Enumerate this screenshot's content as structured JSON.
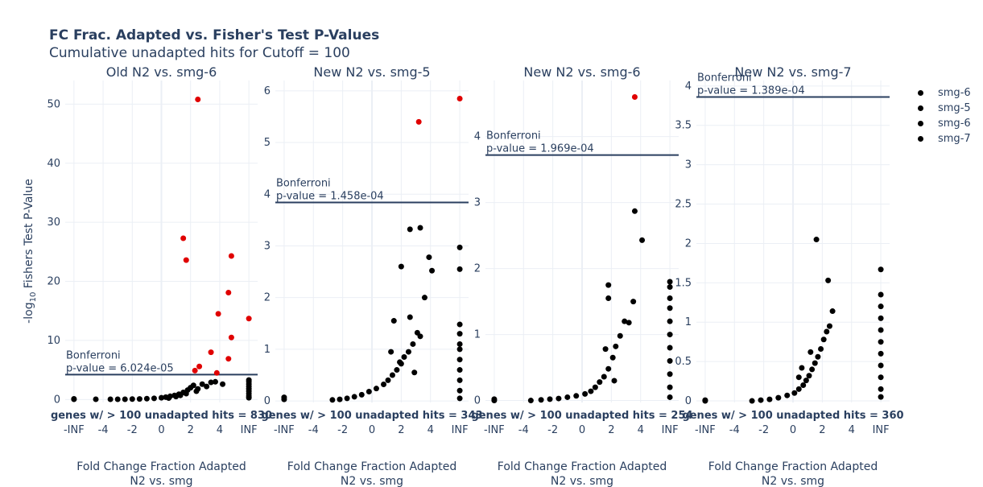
{
  "header": {
    "title": "FC Frac. Adapted vs. Fisher's Test P-Values",
    "subtitle": "Cumulative unadapted hits for Cutoff = 100"
  },
  "legend": {
    "items": [
      "smg-6",
      "smg-5",
      "smg-6",
      "smg-7"
    ]
  },
  "colors": {
    "significant": "#e00000",
    "normal": "#000000",
    "threshold_line": "#2a3f5f",
    "grid": "#ebeff5",
    "text": "#2a3f5f"
  },
  "chart_data": [
    {
      "type": "scatter",
      "title": "Old N2 vs. smg-6",
      "series_name": "smg-6",
      "ylabel_prefix": "-log",
      "ylabel_sub": "10",
      "ylabel_suffix": " Fishers Test P-Value",
      "xlabel_line1": "Fold Change Fraction Adapted",
      "xlabel_line2": "N2 vs. smg",
      "x_ticks": [
        "-INF",
        "-4",
        "-2",
        "0",
        "2",
        "4",
        "INF"
      ],
      "y_ticks": [
        "0",
        "10",
        "20",
        "30",
        "40",
        "50"
      ],
      "ylim": [
        -0.5,
        54
      ],
      "threshold": 4.22,
      "threshold_label1": "Bonferroni",
      "threshold_label2": "p-value = 6.024e-05",
      "gene_count_label": "genes w/ > 100 unadapted hits = 830",
      "red_points": [
        [
          2.5,
          50.8
        ],
        [
          1.5,
          27.3
        ],
        [
          1.7,
          23.6
        ],
        [
          4.8,
          24.3
        ],
        [
          4.6,
          18.1
        ],
        [
          3.9,
          14.5
        ],
        [
          4.8,
          10.5
        ],
        [
          6.0,
          13.7
        ],
        [
          3.4,
          8.0
        ],
        [
          4.6,
          6.9
        ],
        [
          2.6,
          5.6
        ],
        [
          2.3,
          4.9
        ],
        [
          3.8,
          4.5
        ]
      ],
      "black_points": [
        [
          -6.0,
          0.05
        ],
        [
          -6.0,
          0.12
        ],
        [
          -4.5,
          0.05
        ],
        [
          -3.5,
          0.05
        ],
        [
          -3.0,
          0.05
        ],
        [
          -2.5,
          0.05
        ],
        [
          -2.0,
          0.08
        ],
        [
          -1.5,
          0.1
        ],
        [
          -1.0,
          0.15
        ],
        [
          -0.5,
          0.2
        ],
        [
          0.0,
          0.3
        ],
        [
          0.3,
          0.4
        ],
        [
          0.6,
          0.55
        ],
        [
          0.9,
          0.7
        ],
        [
          1.2,
          0.9
        ],
        [
          1.5,
          1.2
        ],
        [
          1.8,
          1.6
        ],
        [
          2.0,
          2.0
        ],
        [
          2.2,
          2.4
        ],
        [
          2.5,
          1.8
        ],
        [
          2.8,
          2.6
        ],
        [
          3.1,
          2.2
        ],
        [
          3.4,
          2.9
        ],
        [
          3.7,
          3.0
        ],
        [
          4.2,
          2.6
        ],
        [
          0.5,
          0.25
        ],
        [
          1.0,
          0.5
        ],
        [
          1.3,
          0.7
        ],
        [
          1.7,
          1.0
        ],
        [
          2.4,
          1.4
        ],
        [
          6.0,
          0.3
        ],
        [
          6.0,
          0.6
        ],
        [
          6.0,
          1.0
        ],
        [
          6.0,
          1.4
        ],
        [
          6.0,
          1.8
        ],
        [
          6.0,
          2.2
        ],
        [
          6.0,
          2.6
        ],
        [
          6.0,
          3.0
        ],
        [
          6.0,
          3.3
        ]
      ]
    },
    {
      "type": "scatter",
      "title": "New N2 vs. smg-5",
      "series_name": "smg-5",
      "xlabel_line1": "Fold Change Fraction Adapted",
      "xlabel_line2": "N2 vs. smg",
      "x_ticks": [
        "-INF",
        "-4",
        "-2",
        "0",
        "2",
        "4",
        "INF"
      ],
      "y_ticks": [
        "0",
        "1",
        "2",
        "3",
        "4",
        "5",
        "6"
      ],
      "ylim": [
        -0.03,
        6.2
      ],
      "threshold": 3.84,
      "threshold_label1": "Bonferroni",
      "threshold_label2": "p-value = 1.458e-04",
      "gene_count_label": "genes w/ > 100 unadapted hits = 343",
      "red_points": [
        [
          3.2,
          5.4
        ],
        [
          6.0,
          5.85
        ]
      ],
      "black_points": [
        [
          -6.0,
          0.03
        ],
        [
          -6.0,
          0.07
        ],
        [
          -2.7,
          0.02
        ],
        [
          -2.2,
          0.03
        ],
        [
          -1.7,
          0.05
        ],
        [
          -1.2,
          0.08
        ],
        [
          -0.7,
          0.12
        ],
        [
          -0.2,
          0.18
        ],
        [
          0.3,
          0.24
        ],
        [
          0.8,
          0.32
        ],
        [
          1.1,
          0.4
        ],
        [
          1.4,
          0.5
        ],
        [
          1.7,
          0.6
        ],
        [
          2.0,
          0.72
        ],
        [
          2.2,
          0.85
        ],
        [
          2.5,
          0.95
        ],
        [
          2.8,
          1.1
        ],
        [
          3.1,
          1.32
        ],
        [
          3.3,
          1.25
        ],
        [
          3.6,
          2.0
        ],
        [
          4.1,
          2.52
        ],
        [
          3.9,
          2.78
        ],
        [
          2.0,
          2.6
        ],
        [
          2.6,
          3.32
        ],
        [
          3.3,
          3.35
        ],
        [
          1.5,
          1.55
        ],
        [
          2.6,
          1.62
        ],
        [
          1.3,
          0.95
        ],
        [
          1.9,
          0.75
        ],
        [
          2.9,
          0.55
        ],
        [
          6.0,
          0.05
        ],
        [
          6.0,
          0.2
        ],
        [
          6.0,
          0.4
        ],
        [
          6.0,
          0.6
        ],
        [
          6.0,
          0.8
        ],
        [
          6.0,
          1.0
        ],
        [
          6.0,
          1.1
        ],
        [
          6.0,
          1.3
        ],
        [
          6.0,
          1.48
        ],
        [
          6.0,
          2.55
        ],
        [
          6.0,
          2.97
        ]
      ]
    },
    {
      "type": "scatter",
      "title": "New N2 vs. smg-6",
      "series_name": "smg-6",
      "xlabel_line1": "Fold Change Fraction Adapted",
      "xlabel_line2": "N2 vs. smg",
      "x_ticks": [
        "-INF",
        "-4",
        "-2",
        "0",
        "2",
        "4",
        "INF"
      ],
      "y_ticks": [
        "0",
        "1",
        "2",
        "3",
        "4"
      ],
      "ylim": [
        -0.03,
        4.85
      ],
      "threshold": 3.72,
      "threshold_label1": "Bonferroni",
      "threshold_label2": "p-value = 1.969e-04",
      "gene_count_label": "genes w/ > 100 unadapted hits = 254",
      "red_points": [
        [
          3.6,
          4.6
        ]
      ],
      "black_points": [
        [
          -6.0,
          0.0
        ],
        [
          -6.0,
          0.02
        ],
        [
          -3.5,
          0.0
        ],
        [
          -2.8,
          0.01
        ],
        [
          -2.2,
          0.02
        ],
        [
          -1.6,
          0.03
        ],
        [
          -1.0,
          0.05
        ],
        [
          -0.4,
          0.07
        ],
        [
          0.2,
          0.1
        ],
        [
          0.6,
          0.14
        ],
        [
          0.9,
          0.2
        ],
        [
          1.2,
          0.28
        ],
        [
          1.5,
          0.36
        ],
        [
          1.8,
          0.48
        ],
        [
          2.1,
          0.65
        ],
        [
          2.3,
          0.82
        ],
        [
          2.6,
          0.98
        ],
        [
          2.9,
          1.2
        ],
        [
          3.2,
          1.18
        ],
        [
          3.5,
          1.5
        ],
        [
          1.8,
          1.55
        ],
        [
          1.8,
          1.75
        ],
        [
          3.6,
          2.87
        ],
        [
          4.1,
          2.43
        ],
        [
          1.6,
          0.78
        ],
        [
          2.2,
          0.3
        ],
        [
          6.0,
          0.05
        ],
        [
          6.0,
          0.2
        ],
        [
          6.0,
          0.4
        ],
        [
          6.0,
          0.6
        ],
        [
          6.0,
          0.8
        ],
        [
          6.0,
          1.0
        ],
        [
          6.0,
          1.2
        ],
        [
          6.0,
          1.4
        ],
        [
          6.0,
          1.55
        ],
        [
          6.0,
          1.72
        ],
        [
          6.0,
          1.8
        ]
      ]
    },
    {
      "type": "scatter",
      "title": "New N2 vs. smg-7",
      "series_name": "smg-7",
      "xlabel_line1": "Fold Change Fraction Adapted",
      "xlabel_line2": "N2 vs. smg",
      "x_ticks": [
        "-INF",
        "-4",
        "-2",
        "0",
        "2",
        "4",
        "INF"
      ],
      "y_ticks": [
        "0",
        "0.5",
        "1",
        "1.5",
        "2",
        "2.5",
        "3",
        "3.5",
        "4"
      ],
      "ylim": [
        -0.02,
        4.07
      ],
      "threshold": 3.86,
      "threshold_label1": "Bonferroni",
      "threshold_label2": "p-value = 1.389e-04",
      "gene_count_label": "genes w/ > 100 unadapted hits = 360",
      "red_points": [],
      "black_points": [
        [
          -6.0,
          0.0
        ],
        [
          -6.0,
          0.01
        ],
        [
          -2.8,
          0.0
        ],
        [
          -2.2,
          0.01
        ],
        [
          -1.6,
          0.02
        ],
        [
          -1.0,
          0.04
        ],
        [
          -0.4,
          0.07
        ],
        [
          0.1,
          0.1
        ],
        [
          0.4,
          0.15
        ],
        [
          0.7,
          0.2
        ],
        [
          0.9,
          0.26
        ],
        [
          1.1,
          0.32
        ],
        [
          1.3,
          0.4
        ],
        [
          1.5,
          0.48
        ],
        [
          1.7,
          0.56
        ],
        [
          1.9,
          0.66
        ],
        [
          2.1,
          0.78
        ],
        [
          2.3,
          0.88
        ],
        [
          2.5,
          0.95
        ],
        [
          2.7,
          1.14
        ],
        [
          1.6,
          2.05
        ],
        [
          2.4,
          1.53
        ],
        [
          0.6,
          0.42
        ],
        [
          1.2,
          0.62
        ],
        [
          0.4,
          0.3
        ],
        [
          6.0,
          0.05
        ],
        [
          6.0,
          0.15
        ],
        [
          6.0,
          0.3
        ],
        [
          6.0,
          0.45
        ],
        [
          6.0,
          0.6
        ],
        [
          6.0,
          0.75
        ],
        [
          6.0,
          0.9
        ],
        [
          6.0,
          1.05
        ],
        [
          6.0,
          1.2
        ],
        [
          6.0,
          1.35
        ],
        [
          6.0,
          1.67
        ]
      ]
    }
  ]
}
